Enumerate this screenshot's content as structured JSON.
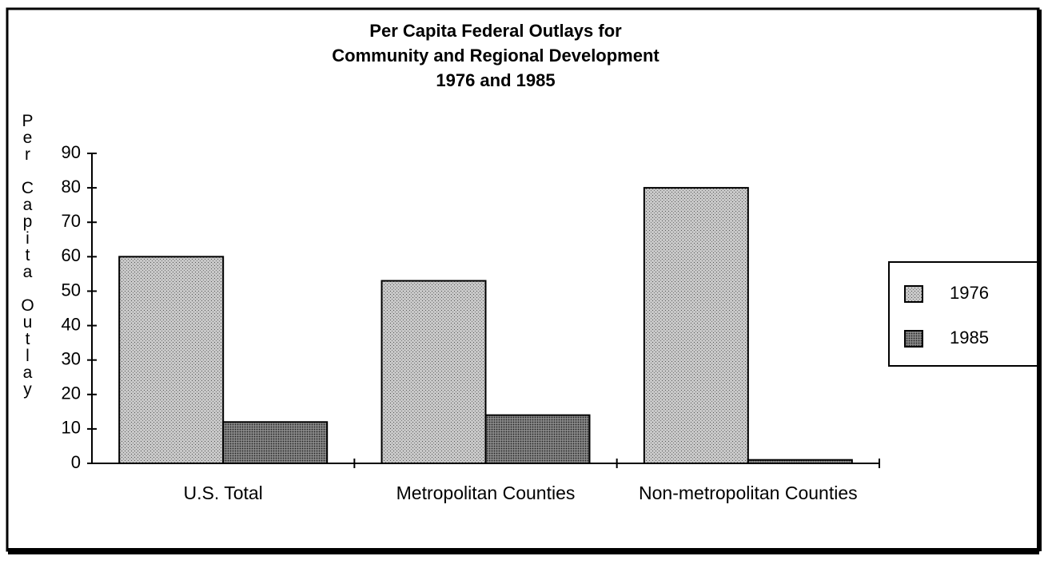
{
  "chart_data": {
    "type": "bar",
    "title": [
      "Per Capita Federal Outlays for",
      "Community and Regional Development",
      "1976 and 1985"
    ],
    "y_label": "Per Capita Outlay",
    "categories": [
      "U.S. Total",
      "Metropolitan Counties",
      "Non-metropolitan Counties"
    ],
    "series": [
      {
        "name": "1976",
        "color": "#c8c8c8",
        "values": [
          60,
          53,
          80
        ]
      },
      {
        "name": "1985",
        "color": "#6a6a6a",
        "values": [
          12,
          14,
          1
        ]
      }
    ],
    "ylim": [
      0,
      90
    ],
    "yticks": [
      0,
      10,
      20,
      30,
      40,
      50,
      60,
      70,
      80,
      90
    ],
    "grid": false,
    "legend": "right"
  }
}
